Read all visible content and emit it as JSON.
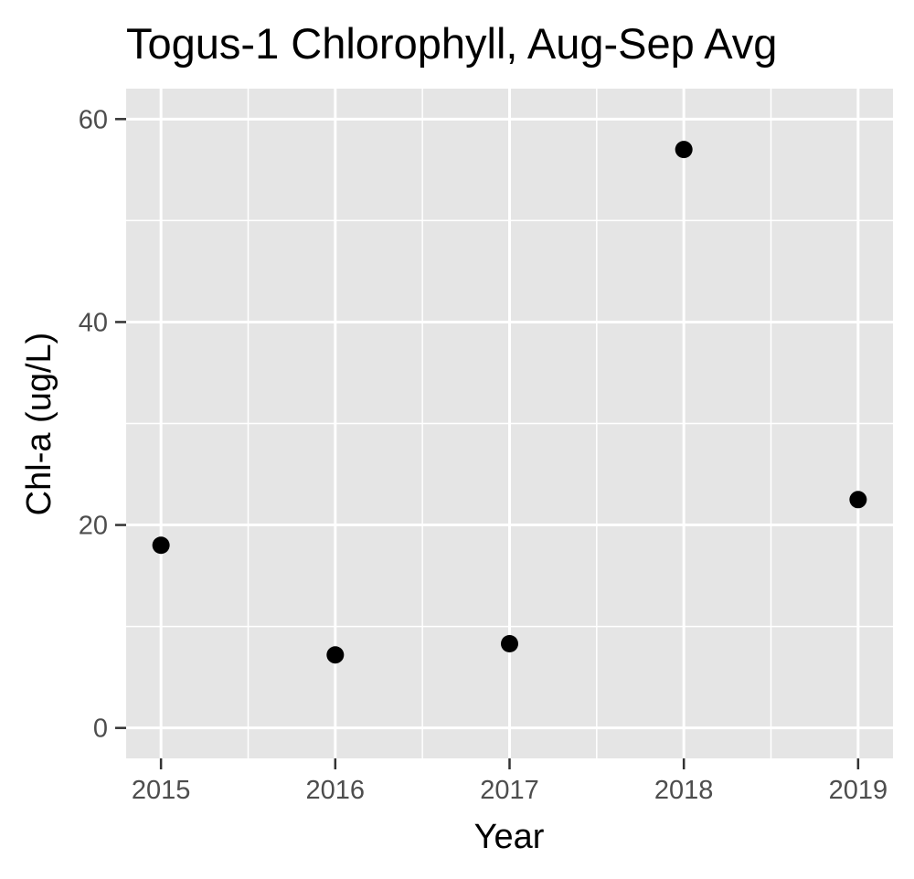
{
  "chart_data": {
    "type": "scatter",
    "title": "Togus-1 Chlorophyll, Aug-Sep Avg",
    "xlabel": "Year",
    "ylabel": "Chl-a (ug/L)",
    "x_ticks": [
      "2015",
      "2016",
      "2017",
      "2018",
      "2019"
    ],
    "y_ticks": [
      "0",
      "20",
      "40",
      "60"
    ],
    "xlim": [
      2014.8,
      2019.2
    ],
    "ylim": [
      -3,
      63
    ],
    "grid": true,
    "point_color": "#000000",
    "panel_color": "#e5e5e5",
    "series": [
      {
        "x": [
          2015,
          2016,
          2017,
          2018,
          2019
        ],
        "y": [
          18.0,
          7.2,
          8.3,
          57.0,
          22.5
        ]
      }
    ]
  }
}
